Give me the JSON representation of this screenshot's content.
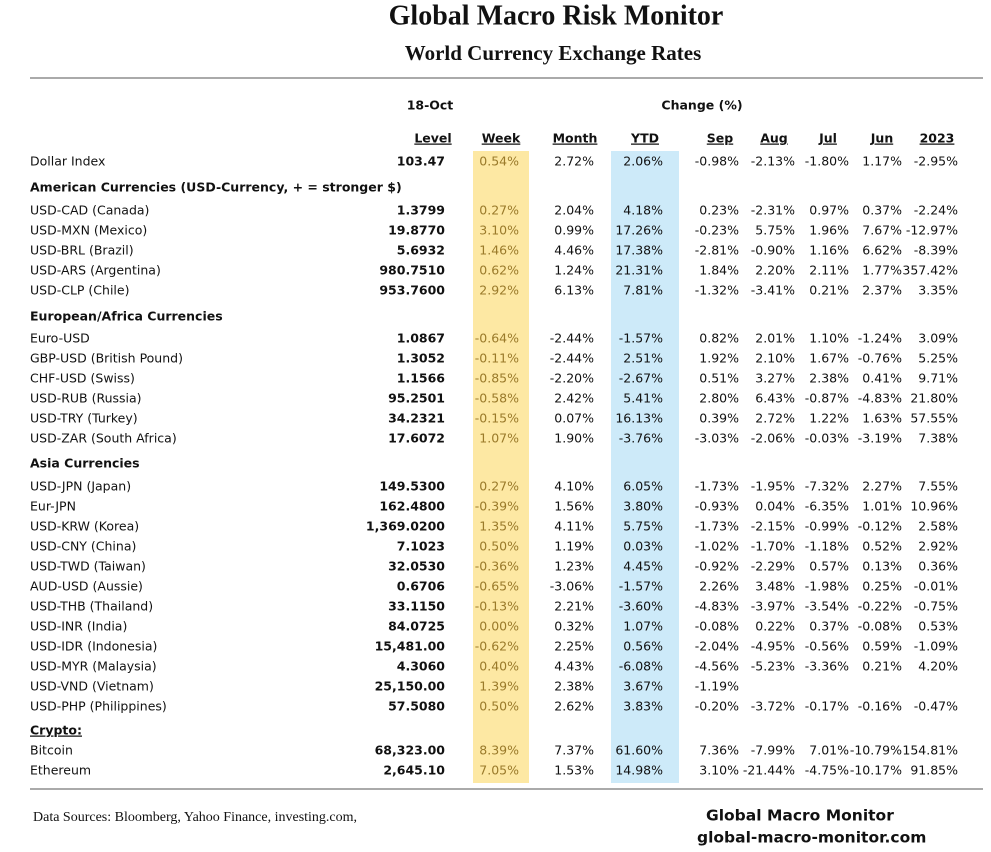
{
  "header": {
    "title": "Global Macro Risk Monitor",
    "subtitle": "World Currency Exchange Rates"
  },
  "table": {
    "date": "18-Oct",
    "change_header": "Change (%)",
    "columns": [
      "Level",
      "Week",
      "Month",
      "YTD",
      "Sep",
      "Aug",
      "Jul",
      "Jun",
      "2023"
    ],
    "rows": [
      {
        "label": "Dollar Index",
        "cells": [
          "103.47",
          "0.54%",
          "2.72%",
          "2.06%",
          "-0.98%",
          "-2.13%",
          "-1.80%",
          "1.17%",
          "-2.95%"
        ]
      },
      {
        "section": "American Currencies (USD-Currency, + = stronger $)"
      },
      {
        "label": "USD-CAD (Canada)",
        "cells": [
          "1.3799",
          "0.27%",
          "2.04%",
          "4.18%",
          "0.23%",
          "-2.31%",
          "0.97%",
          "0.37%",
          "-2.24%"
        ]
      },
      {
        "label": "USD-MXN  (Mexico)",
        "cells": [
          "19.8770",
          "3.10%",
          "0.99%",
          "17.26%",
          "-0.23%",
          "5.75%",
          "1.96%",
          "7.67%",
          "-12.97%"
        ]
      },
      {
        "label": "USD-BRL (Brazil)",
        "cells": [
          "5.6932",
          "1.46%",
          "4.46%",
          "17.38%",
          "-2.81%",
          "-0.90%",
          "1.16%",
          "6.62%",
          "-8.39%"
        ]
      },
      {
        "label": "USD-ARS (Argentina)",
        "cells": [
          "980.7510",
          "0.62%",
          "1.24%",
          "21.31%",
          "1.84%",
          "2.20%",
          "2.11%",
          "1.77%",
          "357.42%"
        ]
      },
      {
        "label": "USD-CLP (Chile)",
        "cells": [
          "953.7600",
          "2.92%",
          "6.13%",
          "7.81%",
          "-1.32%",
          "-3.41%",
          "0.21%",
          "2.37%",
          "3.35%"
        ]
      },
      {
        "section": "European/Africa Currencies"
      },
      {
        "label": "Euro-USD",
        "cells": [
          "1.0867",
          "-0.64%",
          "-2.44%",
          "-1.57%",
          "0.82%",
          "2.01%",
          "1.10%",
          "-1.24%",
          "3.09%"
        ]
      },
      {
        "label": "GBP-USD (British Pound)",
        "cells": [
          "1.3052",
          "-0.11%",
          "-2.44%",
          "2.51%",
          "1.92%",
          "2.10%",
          "1.67%",
          "-0.76%",
          "5.25%"
        ]
      },
      {
        "label": "CHF-USD (Swiss)",
        "cells": [
          "1.1566",
          "-0.85%",
          "-2.20%",
          "-2.67%",
          "0.51%",
          "3.27%",
          "2.38%",
          "0.41%",
          "9.71%"
        ]
      },
      {
        "label": "USD-RUB (Russia)",
        "cells": [
          "95.2501",
          "-0.58%",
          "2.42%",
          "5.41%",
          "2.80%",
          "6.43%",
          "-0.87%",
          "-4.83%",
          "21.80%"
        ]
      },
      {
        "label": "USD-TRY (Turkey)",
        "cells": [
          "34.2321",
          "-0.15%",
          "0.07%",
          "16.13%",
          "0.39%",
          "2.72%",
          "1.22%",
          "1.63%",
          "57.55%"
        ]
      },
      {
        "label": "USD-ZAR (South Africa)",
        "cells": [
          "17.6072",
          "1.07%",
          "1.90%",
          "-3.76%",
          "-3.03%",
          "-2.06%",
          "-0.03%",
          "-3.19%",
          "7.38%"
        ]
      },
      {
        "section": "Asia Currencies"
      },
      {
        "label": "USD-JPN (Japan)",
        "cells": [
          "149.5300",
          "0.27%",
          "4.10%",
          "6.05%",
          "-1.73%",
          "-1.95%",
          "-7.32%",
          "2.27%",
          "7.55%"
        ]
      },
      {
        "label": "Eur-JPN",
        "cells": [
          "162.4800",
          "-0.39%",
          "1.56%",
          "3.80%",
          "-0.93%",
          "0.04%",
          "-6.35%",
          "1.01%",
          "10.96%"
        ]
      },
      {
        "label": "USD-KRW (Korea)",
        "cells": [
          "1,369.0200",
          "1.35%",
          "4.11%",
          "5.75%",
          "-1.73%",
          "-2.15%",
          "-0.99%",
          "-0.12%",
          "2.58%"
        ]
      },
      {
        "label": "USD-CNY (China)",
        "cells": [
          "7.1023",
          "0.50%",
          "1.19%",
          "0.03%",
          "-1.02%",
          "-1.70%",
          "-1.18%",
          "0.52%",
          "2.92%"
        ]
      },
      {
        "label": "USD-TWD (Taiwan)",
        "cells": [
          "32.0530",
          "-0.36%",
          "1.23%",
          "4.45%",
          "-0.92%",
          "-2.29%",
          "0.57%",
          "0.13%",
          "0.36%"
        ]
      },
      {
        "label": "AUD-USD (Aussie)",
        "cells": [
          "0.6706",
          "-0.65%",
          "-3.06%",
          "-1.57%",
          "2.26%",
          "3.48%",
          "-1.98%",
          "0.25%",
          "-0.01%"
        ]
      },
      {
        "label": "USD-THB  (Thailand)",
        "cells": [
          "33.1150",
          "-0.13%",
          "2.21%",
          "-3.60%",
          "-4.83%",
          "-3.97%",
          "-3.54%",
          "-0.22%",
          "-0.75%"
        ]
      },
      {
        "label": "USD-INR (India)",
        "cells": [
          "84.0725",
          "0.00%",
          "0.32%",
          "1.07%",
          "-0.08%",
          "0.22%",
          "0.37%",
          "-0.08%",
          "0.53%"
        ]
      },
      {
        "label": "USD-IDR (Indonesia)",
        "cells": [
          "15,481.00",
          "-0.62%",
          "2.25%",
          "0.56%",
          "-2.04%",
          "-4.95%",
          "-0.56%",
          "0.59%",
          "-1.09%"
        ]
      },
      {
        "label": "USD-MYR (Malaysia)",
        "cells": [
          "4.3060",
          "0.40%",
          "4.43%",
          "-6.08%",
          "-4.56%",
          "-5.23%",
          "-3.36%",
          "0.21%",
          "4.20%"
        ]
      },
      {
        "label": "USD-VND (Vietnam)",
        "cells": [
          "25,150.00",
          "1.39%",
          "2.38%",
          "3.67%",
          "-1.19%"
        ]
      },
      {
        "label": "USD-PHP (Philippines)",
        "cells": [
          "57.5080",
          "0.50%",
          "2.62%",
          "3.83%",
          "-0.20%",
          "-3.72%",
          "-0.17%",
          "-0.16%",
          "-0.47%"
        ]
      },
      {
        "section": "Crypto:"
      },
      {
        "label": "Bitcoin",
        "cells": [
          "68,323.00",
          "8.39%",
          "7.37%",
          "61.60%",
          "7.36%",
          "-7.99%",
          "7.01%",
          "-10.79%",
          "154.81%"
        ]
      },
      {
        "label": "Ethereum",
        "cells": [
          "2,645.10",
          "7.05%",
          "1.53%",
          "14.98%",
          "3.10%",
          "-21.44%",
          "-4.75%",
          "-10.17%",
          "91.85%"
        ]
      }
    ]
  },
  "footer": {
    "sources": "Data Sources:  Bloomberg,  Yahoo Finance, investing.com,",
    "brand": "Global Macro Monitor",
    "site": "global-macro-monitor.com"
  }
}
